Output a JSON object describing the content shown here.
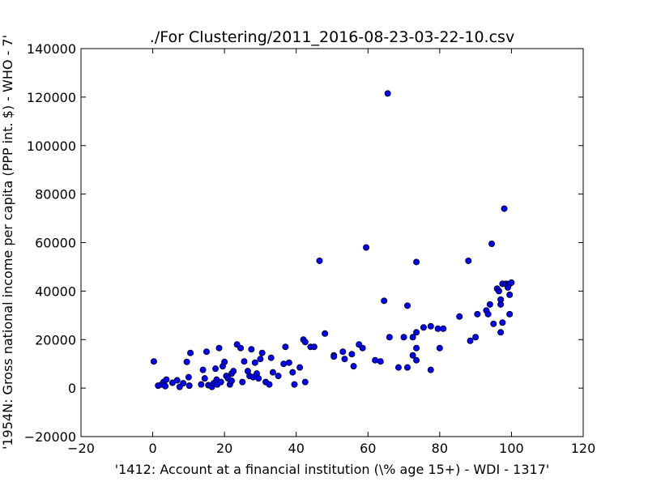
{
  "chart_data": {
    "type": "scatter",
    "title": "./For Clustering/2011_2016-08-23-03-22-10.csv",
    "xlabel": "'1412: Account at a financial institution  (\\% age 15+) - WDI - 1317'",
    "ylabel": "'1954N: Gross national income per capita (PPP int. $) - WHO - 7'",
    "xlim": [
      -20,
      120
    ],
    "ylim": [
      -20000,
      140000
    ],
    "xticks": [
      -20,
      0,
      20,
      40,
      60,
      80,
      100,
      120
    ],
    "yticks": [
      -20000,
      0,
      20000,
      40000,
      60000,
      80000,
      100000,
      120000,
      140000
    ],
    "xtick_labels": [
      "−20",
      "0",
      "20",
      "40",
      "60",
      "80",
      "100",
      "120"
    ],
    "ytick_labels": [
      "−20000",
      "0",
      "20000",
      "40000",
      "60000",
      "80000",
      "100000",
      "120000",
      "140000"
    ],
    "grid": false,
    "marker_color": "#0000ff",
    "points": [
      [
        0.3,
        11000
      ],
      [
        1.5,
        1000
      ],
      [
        2.5,
        1500
      ],
      [
        3.0,
        2500
      ],
      [
        3.5,
        800
      ],
      [
        3.8,
        3500
      ],
      [
        5.5,
        2200
      ],
      [
        6.8,
        3200
      ],
      [
        7.5,
        500
      ],
      [
        8.5,
        2000
      ],
      [
        9.5,
        10800
      ],
      [
        10.0,
        4500
      ],
      [
        10.5,
        14500
      ],
      [
        10.2,
        1000
      ],
      [
        13.5,
        1500
      ],
      [
        14.0,
        7500
      ],
      [
        14.5,
        4000
      ],
      [
        15.0,
        15000
      ],
      [
        15.5,
        1200
      ],
      [
        16.5,
        500
      ],
      [
        17.0,
        2000
      ],
      [
        17.5,
        8000
      ],
      [
        17.8,
        3500
      ],
      [
        18.0,
        1500
      ],
      [
        18.5,
        16500
      ],
      [
        19.0,
        2500
      ],
      [
        19.5,
        9000
      ],
      [
        20.0,
        10800
      ],
      [
        20.5,
        5000
      ],
      [
        21.0,
        4000
      ],
      [
        21.5,
        1500
      ],
      [
        22.0,
        6000
      ],
      [
        22.5,
        7000
      ],
      [
        22.0,
        3000
      ],
      [
        23.5,
        18000
      ],
      [
        24.5,
        16500
      ],
      [
        25.5,
        11000
      ],
      [
        25.0,
        2500
      ],
      [
        26.5,
        7000
      ],
      [
        27.0,
        5000
      ],
      [
        27.5,
        16000
      ],
      [
        28.0,
        4500
      ],
      [
        28.5,
        10500
      ],
      [
        29.0,
        6000
      ],
      [
        29.5,
        4000
      ],
      [
        30.5,
        14500
      ],
      [
        30.0,
        12000
      ],
      [
        31.5,
        2500
      ],
      [
        32.5,
        1500
      ],
      [
        33.0,
        12500
      ],
      [
        33.5,
        6500
      ],
      [
        35.0,
        5000
      ],
      [
        36.5,
        10000
      ],
      [
        37.0,
        17000
      ],
      [
        38.0,
        10500
      ],
      [
        39.0,
        6500
      ],
      [
        39.5,
        1500
      ],
      [
        41.0,
        8500
      ],
      [
        42.0,
        20000
      ],
      [
        42.5,
        19000
      ],
      [
        42.5,
        2500
      ],
      [
        44.0,
        17000
      ],
      [
        45.0,
        17000
      ],
      [
        46.5,
        52500
      ],
      [
        48.0,
        22500
      ],
      [
        50.5,
        13500
      ],
      [
        50.5,
        13000
      ],
      [
        53.0,
        15000
      ],
      [
        53.5,
        12000
      ],
      [
        55.5,
        14000
      ],
      [
        56.0,
        9000
      ],
      [
        57.5,
        18000
      ],
      [
        58.5,
        16500
      ],
      [
        59.5,
        58000
      ],
      [
        62.0,
        11500
      ],
      [
        63.5,
        11000
      ],
      [
        64.5,
        36000
      ],
      [
        66.0,
        21000
      ],
      [
        65.5,
        121500
      ],
      [
        68.5,
        8500
      ],
      [
        70.0,
        21000
      ],
      [
        71.0,
        34000
      ],
      [
        71.0,
        8500
      ],
      [
        72.5,
        21000
      ],
      [
        72.5,
        13500
      ],
      [
        73.5,
        52000
      ],
      [
        73.5,
        23000
      ],
      [
        73.5,
        16500
      ],
      [
        73.5,
        11500
      ],
      [
        75.5,
        25000
      ],
      [
        77.5,
        7500
      ],
      [
        77.5,
        25500
      ],
      [
        79.5,
        24500
      ],
      [
        80.0,
        16500
      ],
      [
        81.0,
        24500
      ],
      [
        85.5,
        29500
      ],
      [
        88.0,
        52500
      ],
      [
        88.5,
        19500
      ],
      [
        90.0,
        21000
      ],
      [
        90.5,
        30500
      ],
      [
        93.0,
        32000
      ],
      [
        93.5,
        30500
      ],
      [
        94.0,
        34500
      ],
      [
        94.5,
        59500
      ],
      [
        95.0,
        26500
      ],
      [
        96.0,
        41000
      ],
      [
        96.5,
        40000
      ],
      [
        97.0,
        36500
      ],
      [
        97.0,
        34500
      ],
      [
        97.0,
        23000
      ],
      [
        97.5,
        27000
      ],
      [
        97.5,
        43000
      ],
      [
        98.0,
        74000
      ],
      [
        98.5,
        43000
      ],
      [
        99.0,
        42500
      ],
      [
        99.0,
        41500
      ],
      [
        99.5,
        43000
      ],
      [
        99.5,
        30500
      ],
      [
        99.5,
        38500
      ],
      [
        100.0,
        43500
      ]
    ]
  }
}
